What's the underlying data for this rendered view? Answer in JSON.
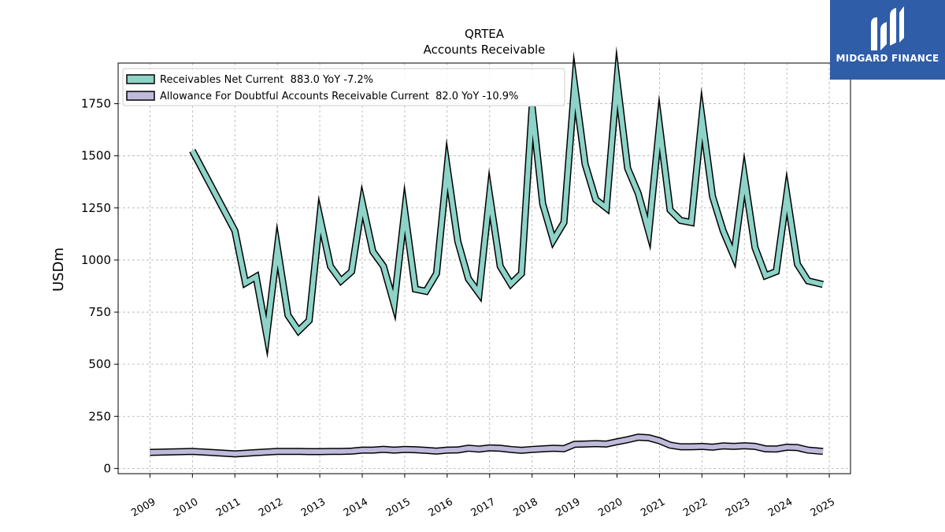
{
  "logo": {
    "text": "MIDGARD FINANCE"
  },
  "chart_data": {
    "type": "line",
    "title": "QRTEA",
    "subtitle": "Accounts Receivable",
    "ylabel": "USDm",
    "xlabel": "",
    "ylim": [
      -25,
      1945
    ],
    "xlim": [
      2008.25,
      2025.5
    ],
    "yticks": [
      0,
      250,
      500,
      750,
      1000,
      1250,
      1500,
      1750
    ],
    "xticks": [
      "2009",
      "2010",
      "2011",
      "2012",
      "2013",
      "2014",
      "2015",
      "2016",
      "2017",
      "2018",
      "2019",
      "2020",
      "2021",
      "2022",
      "2023",
      "2024",
      "2025"
    ],
    "grid": true,
    "legend_position": "top-left",
    "series": [
      {
        "name": "Receivables Net Current  883.0 YoY -7.2%",
        "color": "#8dd3c7",
        "x": [
          2010.0,
          2011.0,
          2011.25,
          2011.5,
          2011.75,
          2012.0,
          2012.25,
          2012.5,
          2012.75,
          2013.0,
          2013.25,
          2013.5,
          2013.75,
          2014.0,
          2014.25,
          2014.5,
          2014.75,
          2015.0,
          2015.25,
          2015.5,
          2015.75,
          2016.0,
          2016.25,
          2016.5,
          2016.75,
          2017.0,
          2017.25,
          2017.5,
          2017.75,
          2018.0,
          2018.25,
          2018.5,
          2018.75,
          2019.0,
          2019.25,
          2019.5,
          2019.75,
          2020.0,
          2020.25,
          2020.5,
          2020.75,
          2021.0,
          2021.25,
          2021.5,
          2021.75,
          2022.0,
          2022.25,
          2022.5,
          2022.75,
          2023.0,
          2023.25,
          2023.5,
          2023.75,
          2024.0,
          2024.25,
          2024.5,
          2024.85
        ],
        "y": [
          1525,
          1140,
          890,
          920,
          640,
          1060,
          735,
          660,
          710,
          1205,
          970,
          900,
          945,
          1275,
          1040,
          970,
          790,
          1235,
          860,
          850,
          935,
          1445,
          1090,
          910,
          840,
          1310,
          970,
          885,
          935,
          1735,
          1270,
          1095,
          1180,
          1840,
          1460,
          1290,
          1250,
          1860,
          1440,
          1320,
          1135,
          1645,
          1240,
          1190,
          1180,
          1685,
          1305,
          1140,
          1020,
          1400,
          1060,
          925,
          945,
          1315,
          980,
          900,
          883
        ]
      },
      {
        "name": "Allowance For Doubtful Accounts Receivable Current  82.0 YoY -10.9%",
        "color": "#bebada",
        "x": [
          2009.0,
          2010.0,
          2011.0,
          2011.25,
          2011.5,
          2011.75,
          2012.0,
          2012.25,
          2012.5,
          2012.75,
          2013.0,
          2013.25,
          2013.5,
          2013.75,
          2014.0,
          2014.25,
          2014.5,
          2014.75,
          2015.0,
          2015.25,
          2015.5,
          2015.75,
          2016.0,
          2016.25,
          2016.5,
          2016.75,
          2017.0,
          2017.25,
          2017.5,
          2017.75,
          2018.0,
          2018.25,
          2018.5,
          2018.75,
          2019.0,
          2019.25,
          2019.5,
          2019.75,
          2020.0,
          2020.25,
          2020.5,
          2020.75,
          2021.0,
          2021.25,
          2021.5,
          2021.75,
          2022.0,
          2022.25,
          2022.5,
          2022.75,
          2023.0,
          2023.25,
          2023.5,
          2023.75,
          2024.0,
          2024.25,
          2024.5,
          2024.85
        ],
        "y": [
          77,
          82,
          70,
          73,
          76,
          79,
          82,
          82,
          82,
          81,
          81,
          82,
          82,
          83,
          88,
          88,
          92,
          88,
          91,
          90,
          87,
          83,
          88,
          89,
          97,
          93,
          99,
          97,
          91,
          87,
          91,
          94,
          97,
          95,
          116,
          117,
          119,
          117,
          128,
          138,
          150,
          147,
          133,
          112,
          104,
          104,
          106,
          102,
          108,
          106,
          109,
          106,
          94,
          93,
          102,
          100,
          88,
          82
        ]
      }
    ]
  }
}
